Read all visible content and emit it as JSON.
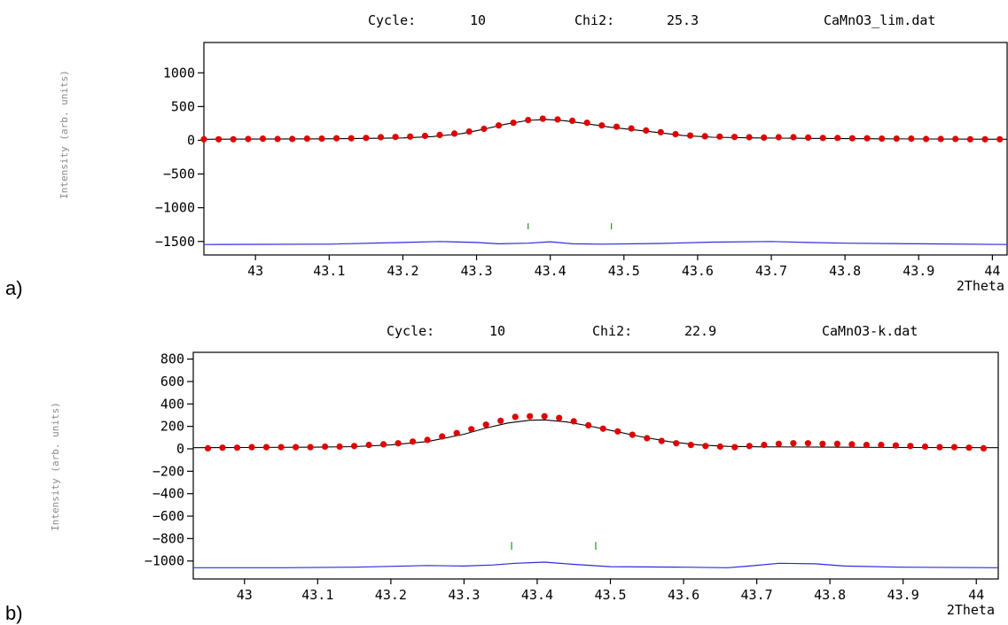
{
  "colors": {
    "observed": "#e00000",
    "calculated": "#000000",
    "difference": "#2b2bdc",
    "bragg": "#1a9a1a",
    "axis": "#000000",
    "ylabel": "#8a8a8a"
  },
  "chart_data": [
    {
      "type": "scatter",
      "panel_label": "a)",
      "header": {
        "cycle_label": "Cycle:",
        "cycle_value": "10",
        "chi_label": "Chi2:",
        "chi_value": "25.3",
        "file": "CaMnO3_lim.dat"
      },
      "xlabel": "2Theta",
      "ylabel": "Intensity (arb. units)",
      "xlim": [
        42.93,
        44.02
      ],
      "ylim": [
        -1700,
        1450
      ],
      "xticks": [
        43,
        43.1,
        43.2,
        43.3,
        43.4,
        43.5,
        43.6,
        43.7,
        43.8,
        43.9,
        44
      ],
      "xtick_labels": [
        "43",
        "43.1",
        "43.2",
        "43.3",
        "43.4",
        "43.5",
        "43.6",
        "43.7",
        "43.8",
        "43.9",
        "44"
      ],
      "yticks": [
        1000,
        500,
        0,
        -500,
        -1000,
        -1500
      ],
      "ytick_labels": [
        "1000",
        "500",
        "0",
        "−500",
        "−1000",
        "−1500"
      ],
      "series": [
        {
          "role": "observed",
          "x": [
            42.93,
            42.95,
            42.97,
            42.99,
            43.01,
            43.03,
            43.05,
            43.07,
            43.09,
            43.11,
            43.13,
            43.15,
            43.17,
            43.19,
            43.21,
            43.23,
            43.25,
            43.27,
            43.29,
            43.31,
            43.33,
            43.35,
            43.37,
            43.39,
            43.41,
            43.43,
            43.45,
            43.47,
            43.49,
            43.51,
            43.53,
            43.55,
            43.57,
            43.59,
            43.61,
            43.63,
            43.65,
            43.67,
            43.69,
            43.71,
            43.73,
            43.75,
            43.77,
            43.79,
            43.81,
            43.83,
            43.85,
            43.87,
            43.89,
            43.91,
            43.93,
            43.95,
            43.97,
            43.99,
            44.01
          ],
          "y": [
            15,
            15,
            15,
            20,
            25,
            20,
            20,
            25,
            25,
            30,
            30,
            35,
            45,
            50,
            55,
            65,
            80,
            100,
            130,
            170,
            220,
            260,
            300,
            320,
            310,
            290,
            260,
            220,
            200,
            175,
            145,
            120,
            90,
            70,
            60,
            55,
            50,
            45,
            40,
            45,
            45,
            40,
            35,
            35,
            30,
            30,
            25,
            25,
            25,
            20,
            20,
            20,
            15,
            15,
            15
          ]
        },
        {
          "role": "calculated",
          "x": [
            42.93,
            43.0,
            43.1,
            43.15,
            43.2,
            43.24,
            43.28,
            43.31,
            43.34,
            43.37,
            43.395,
            43.42,
            43.45,
            43.48,
            43.51,
            43.55,
            43.58,
            43.62,
            43.68,
            43.75,
            43.85,
            44.02
          ],
          "y": [
            15,
            18,
            22,
            28,
            35,
            55,
            100,
            165,
            240,
            295,
            310,
            290,
            245,
            195,
            160,
            110,
            70,
            45,
            35,
            28,
            22,
            15
          ]
        },
        {
          "role": "difference",
          "x": [
            42.93,
            43.1,
            43.2,
            43.25,
            43.3,
            43.33,
            43.37,
            43.4,
            43.43,
            43.47,
            43.55,
            43.62,
            43.7,
            43.75,
            43.8,
            43.9,
            44.02
          ],
          "y": [
            -1545,
            -1540,
            -1515,
            -1500,
            -1515,
            -1535,
            -1525,
            -1505,
            -1535,
            -1540,
            -1530,
            -1510,
            -1500,
            -1515,
            -1525,
            -1535,
            -1545
          ]
        }
      ],
      "bragg_positions": [
        43.37,
        43.483
      ],
      "bragg_y": [
        -1230,
        -1320
      ]
    },
    {
      "type": "scatter",
      "panel_label": "b)",
      "header": {
        "cycle_label": "Cycle:",
        "cycle_value": "10",
        "chi_label": "Chi2:",
        "chi_value": "22.9",
        "file": "CaMnO3-k.dat"
      },
      "xlabel": "2Theta",
      "ylabel": "Intensity (arb. units)",
      "xlim": [
        42.93,
        44.03
      ],
      "ylim": [
        -1160,
        860
      ],
      "xticks": [
        43,
        43.1,
        43.2,
        43.3,
        43.4,
        43.5,
        43.6,
        43.7,
        43.8,
        43.9,
        44
      ],
      "xtick_labels": [
        "43",
        "43.1",
        "43.2",
        "43.3",
        "43.4",
        "43.5",
        "43.6",
        "43.7",
        "43.8",
        "43.9",
        "44"
      ],
      "yticks": [
        800,
        600,
        400,
        200,
        0,
        -200,
        -400,
        -600,
        -800,
        -1000
      ],
      "ytick_labels": [
        "800",
        "600",
        "400",
        "200",
        "0",
        "−200",
        "−400",
        "−600",
        "−800",
        "−1000"
      ],
      "series": [
        {
          "role": "observed",
          "x": [
            42.95,
            42.97,
            42.99,
            43.01,
            43.03,
            43.05,
            43.07,
            43.09,
            43.11,
            43.13,
            43.15,
            43.17,
            43.19,
            43.21,
            43.23,
            43.25,
            43.27,
            43.29,
            43.31,
            43.33,
            43.35,
            43.37,
            43.39,
            43.41,
            43.43,
            43.45,
            43.47,
            43.49,
            43.51,
            43.53,
            43.55,
            43.57,
            43.59,
            43.61,
            43.63,
            43.65,
            43.67,
            43.69,
            43.71,
            43.73,
            43.75,
            43.77,
            43.79,
            43.81,
            43.83,
            43.85,
            43.87,
            43.89,
            43.91,
            43.93,
            43.95,
            43.97,
            43.99,
            44.01
          ],
          "y": [
            5,
            10,
            10,
            15,
            15,
            15,
            15,
            15,
            20,
            20,
            25,
            35,
            40,
            50,
            65,
            80,
            110,
            140,
            175,
            215,
            250,
            285,
            290,
            290,
            275,
            245,
            210,
            180,
            155,
            125,
            95,
            70,
            50,
            35,
            25,
            20,
            15,
            25,
            35,
            45,
            50,
            50,
            45,
            45,
            40,
            35,
            35,
            30,
            25,
            20,
            15,
            15,
            10,
            5
          ]
        },
        {
          "role": "calculated",
          "x": [
            42.93,
            43.0,
            43.1,
            43.15,
            43.2,
            43.25,
            43.3,
            43.33,
            43.36,
            43.39,
            43.41,
            43.44,
            43.47,
            43.5,
            43.54,
            43.58,
            43.62,
            43.66,
            43.7,
            43.8,
            43.9,
            44.03
          ],
          "y": [
            10,
            12,
            15,
            20,
            35,
            65,
            130,
            185,
            230,
            255,
            258,
            240,
            205,
            165,
            110,
            65,
            35,
            22,
            18,
            15,
            12,
            10
          ]
        },
        {
          "role": "difference",
          "x": [
            42.93,
            43.05,
            43.15,
            43.25,
            43.3,
            43.34,
            43.37,
            43.41,
            43.45,
            43.5,
            43.6,
            43.66,
            43.69,
            43.73,
            43.78,
            43.82,
            43.9,
            44.03
          ],
          "y": [
            -1060,
            -1060,
            -1055,
            -1040,
            -1045,
            -1035,
            -1020,
            -1010,
            -1030,
            -1050,
            -1055,
            -1060,
            -1045,
            -1020,
            -1025,
            -1045,
            -1055,
            -1060
          ]
        }
      ],
      "bragg_positions": [
        43.365,
        43.48
      ],
      "bragg_y": [
        -830,
        -900
      ]
    }
  ]
}
